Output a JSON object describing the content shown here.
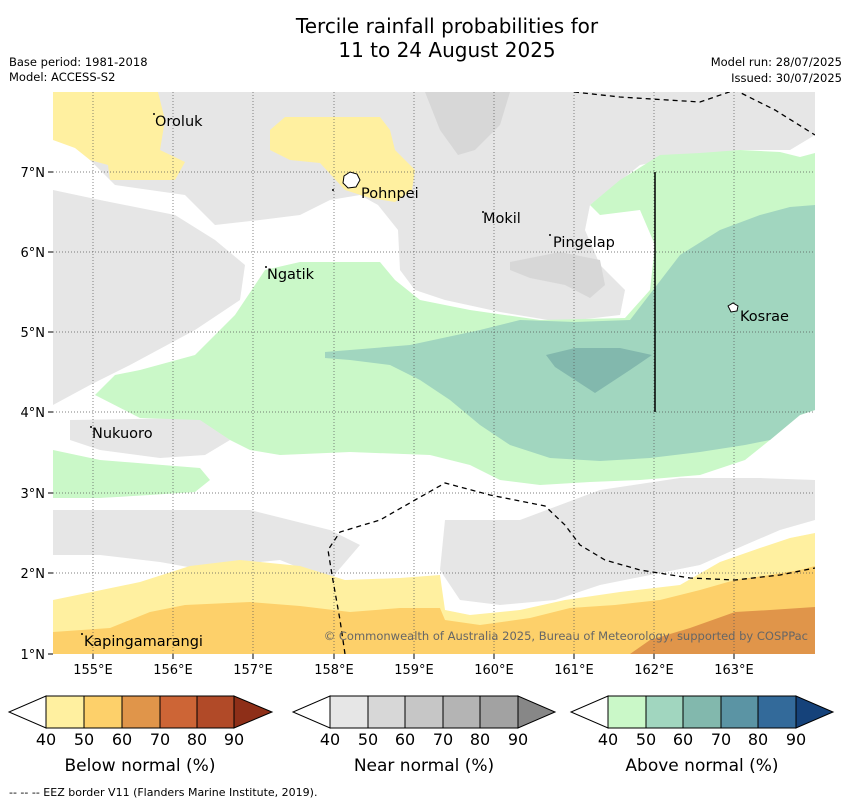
{
  "title": {
    "line1": "Tercile rainfall probabilities for",
    "line2": "11 to 24 August 2025"
  },
  "info": {
    "base_period": "Base period: 1981-2018",
    "model": "Model: ACCESS-S2",
    "model_run": "Model run: 28/07/2025",
    "issued": "Issued: 30/07/2025"
  },
  "map": {
    "lon_ticks": [
      "155°E",
      "156°E",
      "157°E",
      "158°E",
      "159°E",
      "160°E",
      "161°E",
      "162°E",
      "163°E"
    ],
    "lat_ticks": [
      "7°N",
      "6°N",
      "5°N",
      "4°N",
      "3°N",
      "2°N",
      "1°N"
    ],
    "places": [
      "Oroluk",
      "Pohnpei",
      "Mokil",
      "Pingelap",
      "Ngatik",
      "Kosrae",
      "Nukuoro",
      "Kapingamarangi"
    ],
    "copyright": "© Commonwealth of Australia 2025, Bureau of Meteorology, supported by COSPPac"
  },
  "colorbars": [
    {
      "label": "Below normal (%)",
      "ticks": [
        "40",
        "50",
        "60",
        "70",
        "80",
        "90"
      ],
      "colors": [
        "#fff0a0",
        "#fdd06a",
        "#e0954a",
        "#cd6536",
        "#b14a28",
        "#8e2f18"
      ]
    },
    {
      "label": "Near normal (%)",
      "ticks": [
        "40",
        "50",
        "60",
        "70",
        "80",
        "90"
      ],
      "colors": [
        "#e6e6e6",
        "#d7d7d7",
        "#c6c6c6",
        "#b4b4b4",
        "#a2a2a2",
        "#878787"
      ]
    },
    {
      "label": "Above normal (%)",
      "ticks": [
        "40",
        "50",
        "60",
        "70",
        "80",
        "90"
      ],
      "colors": [
        "#caf8c8",
        "#a1d6bf",
        "#82b8ad",
        "#5b94a4",
        "#336a9a",
        "#15427a"
      ]
    }
  ],
  "footnote": "--  --  -- EEZ border V11 (Flanders Marine Institute, 2019)."
}
